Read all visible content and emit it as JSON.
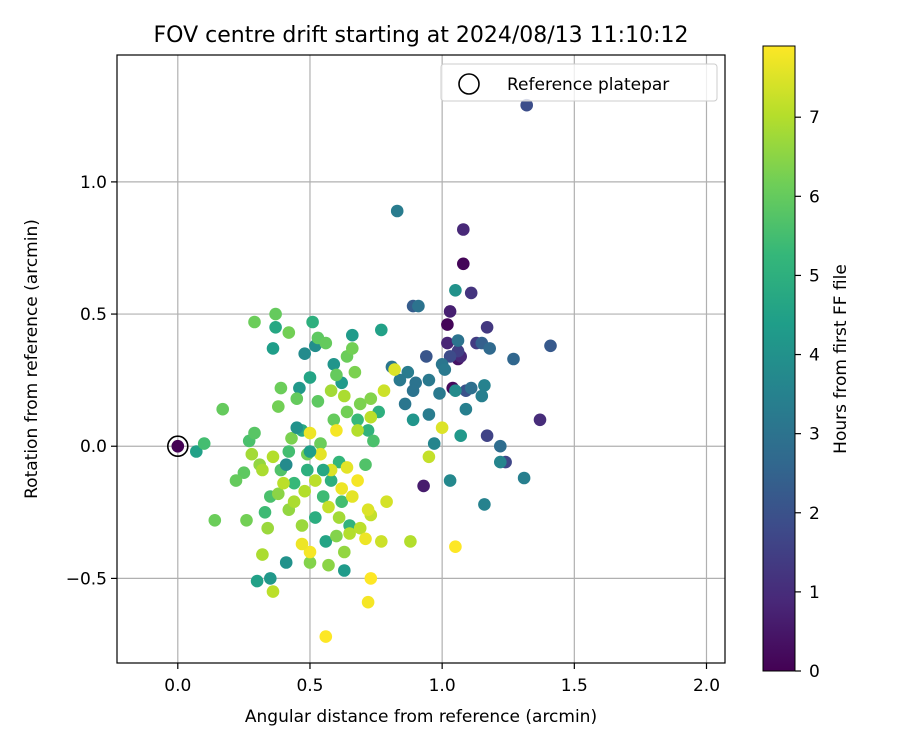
{
  "chart_data": {
    "type": "scatter",
    "title": "FOV centre drift starting at 2024/08/13 11:10:12",
    "xlabel": "Angular distance from reference (arcmin)",
    "ylabel": "Rotation from reference (arcmin)",
    "xlim": [
      -0.23,
      2.07
    ],
    "ylim": [
      -0.82,
      1.48
    ],
    "xticks": [
      0.0,
      0.5,
      1.0,
      1.5,
      2.0
    ],
    "xtick_labels": [
      "0.0",
      "0.5",
      "1.0",
      "1.5",
      "2.0"
    ],
    "yticks": [
      -0.5,
      0.0,
      0.5,
      1.0
    ],
    "ytick_labels": [
      "−0.5",
      "0.0",
      "0.5",
      "1.0"
    ],
    "grid": true,
    "legend": {
      "label": "Reference platepar",
      "position": "top-right"
    },
    "reference_point": {
      "x": 0.0,
      "y": 0.0
    },
    "colorbar": {
      "label": "Hours from first FF file",
      "colormap": "viridis",
      "range": [
        0,
        7.9
      ],
      "ticks": [
        0,
        1,
        2,
        3,
        4,
        5,
        6,
        7
      ],
      "tick_labels": [
        "0",
        "1",
        "2",
        "3",
        "4",
        "5",
        "6",
        "7"
      ]
    },
    "colors": {
      "viridis": [
        "#440154",
        "#482878",
        "#3e4989",
        "#31688e",
        "#26828e",
        "#1f9e89",
        "#35b779",
        "#6ece58",
        "#b5de2b",
        "#fde725"
      ]
    },
    "points": [
      [
        1.02,
        0.46,
        0.1
      ],
      [
        1.08,
        0.69,
        0.1
      ],
      [
        1.04,
        0.22,
        0.2
      ],
      [
        1.06,
        0.33,
        0.4
      ],
      [
        0.93,
        -0.15,
        0.6
      ],
      [
        1.03,
        0.51,
        0.7
      ],
      [
        1.02,
        0.39,
        0.8
      ],
      [
        1.08,
        0.82,
        0.9
      ],
      [
        1.07,
        0.34,
        0.9
      ],
      [
        1.37,
        0.1,
        1.0
      ],
      [
        1.11,
        0.58,
        1.2
      ],
      [
        1.17,
        0.45,
        1.3
      ],
      [
        1.13,
        0.39,
        1.4
      ],
      [
        1.06,
        0.36,
        1.5
      ],
      [
        1.17,
        0.04,
        1.6
      ],
      [
        1.32,
        1.29,
        1.9
      ],
      [
        1.24,
        -0.06,
        1.7
      ],
      [
        1.03,
        0.34,
        1.8
      ],
      [
        1.41,
        0.38,
        2.2
      ],
      [
        1.09,
        0.21,
        2.0
      ],
      [
        0.94,
        0.34,
        2.1
      ],
      [
        0.89,
        0.53,
        2.3
      ],
      [
        1.15,
        0.39,
        2.4
      ],
      [
        1.27,
        0.33,
        2.6
      ],
      [
        1.18,
        0.37,
        2.7
      ],
      [
        1.22,
        0.0,
        2.8
      ],
      [
        1.11,
        0.22,
        2.9
      ],
      [
        1.06,
        0.4,
        3.0
      ],
      [
        1.0,
        0.31,
        3.1
      ],
      [
        1.01,
        0.29,
        3.2
      ],
      [
        0.95,
        0.12,
        3.3
      ],
      [
        0.83,
        0.89,
        3.3
      ],
      [
        1.09,
        0.14,
        3.4
      ],
      [
        0.99,
        0.2,
        3.2
      ],
      [
        0.9,
        0.24,
        3.0
      ],
      [
        0.86,
        0.16,
        3.1
      ],
      [
        1.16,
        -0.22,
        3.5
      ],
      [
        1.31,
        -0.12,
        3.4
      ],
      [
        1.22,
        -0.06,
        3.6
      ],
      [
        1.03,
        -0.13,
        3.7
      ],
      [
        0.95,
        0.25,
        3.2
      ],
      [
        0.87,
        0.28,
        3.3
      ],
      [
        0.97,
        0.01,
        3.6
      ],
      [
        1.16,
        0.23,
        3.5
      ],
      [
        1.15,
        0.19,
        3.4
      ],
      [
        0.91,
        0.53,
        3.0
      ],
      [
        0.84,
        0.25,
        3.2
      ],
      [
        0.89,
        0.21,
        3.0
      ],
      [
        0.81,
        0.3,
        3.1
      ],
      [
        1.05,
        0.21,
        3.8
      ],
      [
        1.05,
        0.59,
        4.0
      ],
      [
        1.07,
        0.04,
        4.2
      ],
      [
        0.89,
        0.1,
        4.1
      ],
      [
        0.77,
        0.44,
        4.5
      ],
      [
        0.66,
        0.42,
        4.3
      ],
      [
        0.63,
        -0.47,
        4.3
      ],
      [
        0.41,
        -0.44,
        4.0
      ],
      [
        0.35,
        -0.5,
        4.2
      ],
      [
        0.3,
        -0.51,
        4.5
      ],
      [
        0.48,
        0.35,
        3.8
      ],
      [
        0.52,
        0.38,
        3.9
      ],
      [
        0.59,
        0.31,
        4.1
      ],
      [
        0.62,
        0.24,
        4.3
      ],
      [
        0.46,
        0.22,
        4.2
      ],
      [
        0.5,
        0.26,
        4.6
      ],
      [
        0.36,
        0.37,
        4.4
      ],
      [
        0.37,
        0.45,
        4.7
      ],
      [
        0.47,
        0.06,
        4.8
      ],
      [
        0.56,
        -0.36,
        4.6
      ],
      [
        0.52,
        -0.27,
        4.9
      ],
      [
        0.58,
        -0.13,
        5.0
      ],
      [
        0.61,
        -0.06,
        5.2
      ],
      [
        0.65,
        -0.3,
        5.1
      ],
      [
        0.44,
        -0.14,
        5.3
      ],
      [
        0.49,
        -0.09,
        5.0
      ],
      [
        0.55,
        -0.19,
        5.4
      ],
      [
        0.62,
        -0.21,
        5.5
      ],
      [
        0.68,
        0.1,
        5.3
      ],
      [
        0.72,
        0.06,
        5.1
      ],
      [
        0.76,
        0.13,
        5.0
      ],
      [
        0.74,
        0.02,
        5.6
      ],
      [
        0.71,
        -0.07,
        5.7
      ],
      [
        0.33,
        -0.25,
        5.4
      ],
      [
        0.35,
        -0.19,
        5.6
      ],
      [
        0.39,
        -0.09,
        5.7
      ],
      [
        0.42,
        -0.02,
        5.5
      ],
      [
        0.27,
        0.02,
        5.6
      ],
      [
        0.29,
        0.05,
        5.8
      ],
      [
        0.25,
        -0.1,
        5.9
      ],
      [
        0.22,
        -0.13,
        6.0
      ],
      [
        0.07,
        -0.02,
        4.5
      ],
      [
        0.1,
        0.01,
        5.5
      ],
      [
        0.14,
        -0.28,
        6.1
      ],
      [
        0.17,
        0.14,
        6.0
      ],
      [
        0.26,
        -0.28,
        6.2
      ],
      [
        0.29,
        0.47,
        6.1
      ],
      [
        0.37,
        0.5,
        6.0
      ],
      [
        0.42,
        0.43,
        6.2
      ],
      [
        0.51,
        0.47,
        5.0
      ],
      [
        0.53,
        0.41,
        5.9
      ],
      [
        0.56,
        0.39,
        6.0
      ],
      [
        0.64,
        0.34,
        6.1
      ],
      [
        0.66,
        0.37,
        6.2
      ],
      [
        0.6,
        0.27,
        6.0
      ],
      [
        0.53,
        0.17,
        5.9
      ],
      [
        0.45,
        0.18,
        6.0
      ],
      [
        0.39,
        0.22,
        6.1
      ],
      [
        0.38,
        0.15,
        6.2
      ],
      [
        0.43,
        0.03,
        6.3
      ],
      [
        0.49,
        -0.03,
        6.2
      ],
      [
        0.54,
        0.01,
        6.1
      ],
      [
        0.59,
        0.1,
        6.0
      ],
      [
        0.64,
        0.13,
        6.2
      ],
      [
        0.69,
        0.16,
        6.3
      ],
      [
        0.73,
        0.18,
        6.4
      ],
      [
        0.67,
        0.28,
        6.3
      ],
      [
        0.6,
        -0.34,
        6.4
      ],
      [
        0.57,
        -0.45,
        6.5
      ],
      [
        0.63,
        -0.4,
        6.6
      ],
      [
        0.5,
        -0.44,
        6.4
      ],
      [
        0.47,
        -0.3,
        6.7
      ],
      [
        0.42,
        -0.24,
        6.6
      ],
      [
        0.38,
        -0.18,
        6.5
      ],
      [
        0.34,
        -0.31,
        6.7
      ],
      [
        0.31,
        -0.07,
        6.6
      ],
      [
        0.28,
        -0.03,
        6.8
      ],
      [
        0.32,
        -0.09,
        6.9
      ],
      [
        0.36,
        -0.04,
        7.0
      ],
      [
        0.4,
        -0.14,
        7.1
      ],
      [
        0.44,
        -0.21,
        6.9
      ],
      [
        0.48,
        -0.17,
        7.0
      ],
      [
        0.52,
        -0.13,
        7.1
      ],
      [
        0.57,
        -0.23,
        7.2
      ],
      [
        0.61,
        -0.27,
        6.8
      ],
      [
        0.65,
        -0.33,
        7.0
      ],
      [
        0.69,
        -0.31,
        7.1
      ],
      [
        0.73,
        -0.26,
        7.2
      ],
      [
        0.77,
        -0.36,
        7.3
      ],
      [
        0.58,
        0.21,
        6.8
      ],
      [
        0.63,
        0.19,
        6.9
      ],
      [
        0.68,
        0.06,
        7.0
      ],
      [
        0.73,
        0.11,
        7.1
      ],
      [
        0.78,
        0.21,
        7.3
      ],
      [
        0.82,
        0.29,
        7.5
      ],
      [
        0.79,
        -0.21,
        7.4
      ],
      [
        0.72,
        -0.24,
        7.5
      ],
      [
        0.66,
        -0.19,
        7.6
      ],
      [
        0.62,
        -0.16,
        7.7
      ],
      [
        0.58,
        -0.09,
        7.5
      ],
      [
        0.54,
        -0.03,
        7.6
      ],
      [
        0.5,
        0.05,
        7.7
      ],
      [
        0.6,
        0.06,
        7.8
      ],
      [
        0.64,
        -0.08,
        7.6
      ],
      [
        0.68,
        -0.13,
        7.8
      ],
      [
        0.71,
        -0.35,
        7.7
      ],
      [
        0.73,
        -0.5,
        7.9
      ],
      [
        0.72,
        -0.59,
        7.8
      ],
      [
        0.56,
        -0.72,
        7.9
      ],
      [
        0.5,
        -0.4,
        7.8
      ],
      [
        0.47,
        -0.37,
        7.7
      ],
      [
        1.05,
        -0.38,
        7.9
      ],
      [
        1.0,
        0.07,
        7.5
      ],
      [
        0.95,
        -0.04,
        7.2
      ],
      [
        0.88,
        -0.36,
        7.0
      ],
      [
        0.36,
        -0.55,
        7.1
      ],
      [
        0.32,
        -0.41,
        6.9
      ],
      [
        0.55,
        -0.09,
        4.7
      ],
      [
        0.5,
        -0.02,
        4.4
      ],
      [
        0.45,
        0.07,
        4.0
      ],
      [
        0.41,
        -0.07,
        3.8
      ]
    ]
  }
}
